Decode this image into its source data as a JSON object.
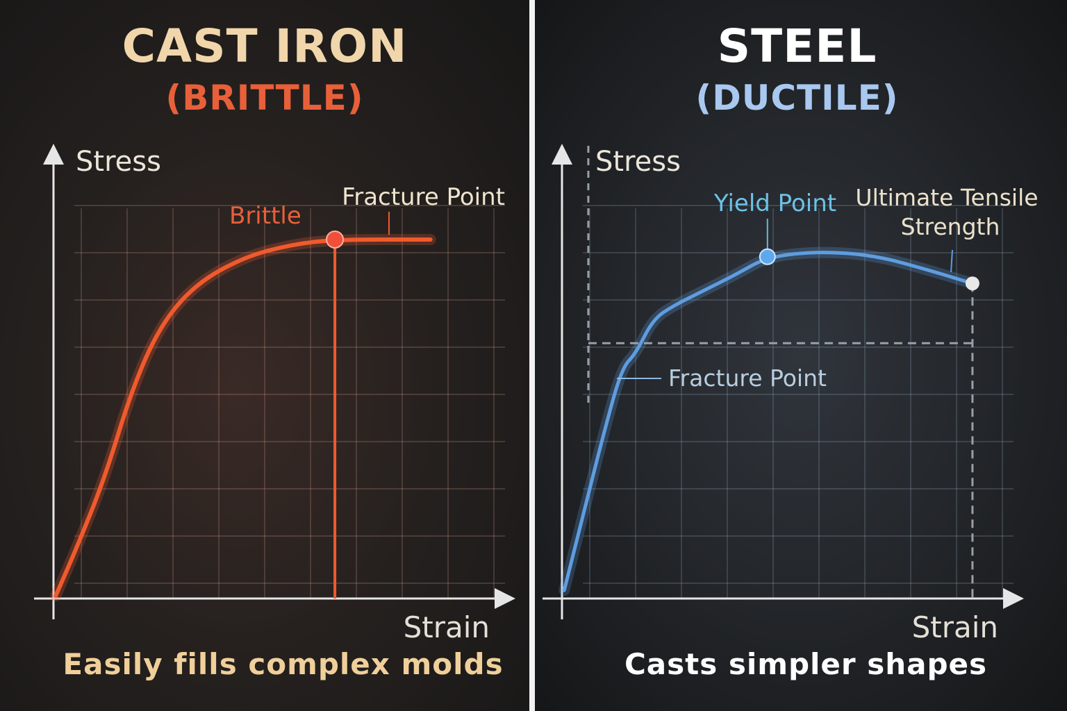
{
  "colors": {
    "cast_iron_curve": "#ef5a2e",
    "steel_curve": "#5f9de0",
    "cast_iron_title": "#f1d6ac",
    "brittle": "#e8603a",
    "steel_title": "#ffffff",
    "ductile": "#a9c8f0",
    "axis": "#e6e6e6"
  },
  "left": {
    "title": "CAST IRON",
    "subtitle": "(BRITTLE)",
    "caption": "Easily fills complex molds"
  },
  "right": {
    "title": "STEEL",
    "subtitle": "(DUCTILE)",
    "caption": "Casts simpler shapes"
  },
  "chart_data": [
    {
      "type": "line",
      "title": "CAST IRON",
      "xlabel": "Strain",
      "ylabel": "Stress",
      "xlim": [
        0,
        1
      ],
      "ylim": [
        0,
        1
      ],
      "grid": true,
      "series": [
        {
          "name": "Brittle",
          "x": [
            0.005,
            0.051,
            0.114,
            0.176,
            0.238,
            0.316,
            0.425,
            0.533,
            0.63,
            0.844
          ],
          "y": [
            0.006,
            0.11,
            0.264,
            0.463,
            0.601,
            0.693,
            0.754,
            0.782,
            0.793,
            0.793
          ]
        }
      ],
      "annotations": [
        {
          "text": "Fracture Point",
          "x": 0.63,
          "y": 0.793
        },
        {
          "text": "Brittle"
        }
      ]
    },
    {
      "type": "line",
      "title": "STEEL",
      "xlabel": "Strain",
      "ylabel": "Stress",
      "xlim": [
        0,
        1
      ],
      "ylim": [
        0,
        1
      ],
      "grid": true,
      "series": [
        {
          "x": [
            0.005,
            0.048,
            0.095,
            0.134,
            0.165,
            0.204,
            0.25,
            0.313,
            0.39,
            0.46,
            0.577,
            0.701,
            0.826,
            0.919
          ],
          "y": [
            0.018,
            0.187,
            0.371,
            0.509,
            0.541,
            0.617,
            0.647,
            0.678,
            0.716,
            0.755,
            0.767,
            0.758,
            0.724,
            0.696
          ]
        }
      ],
      "annotations": [
        {
          "text": "Yield Point",
          "x": 0.46,
          "y": 0.755
        },
        {
          "text": "Ultimate Tensile",
          "text2": "Strength",
          "x": 0.919,
          "y": 0.696
        },
        {
          "text": "Fracture Point",
          "x": 0.124,
          "y": 0.488
        }
      ],
      "reference_lines": {
        "horizontal_stress": 0.564,
        "vertical_strain": 0.059
      }
    }
  ]
}
